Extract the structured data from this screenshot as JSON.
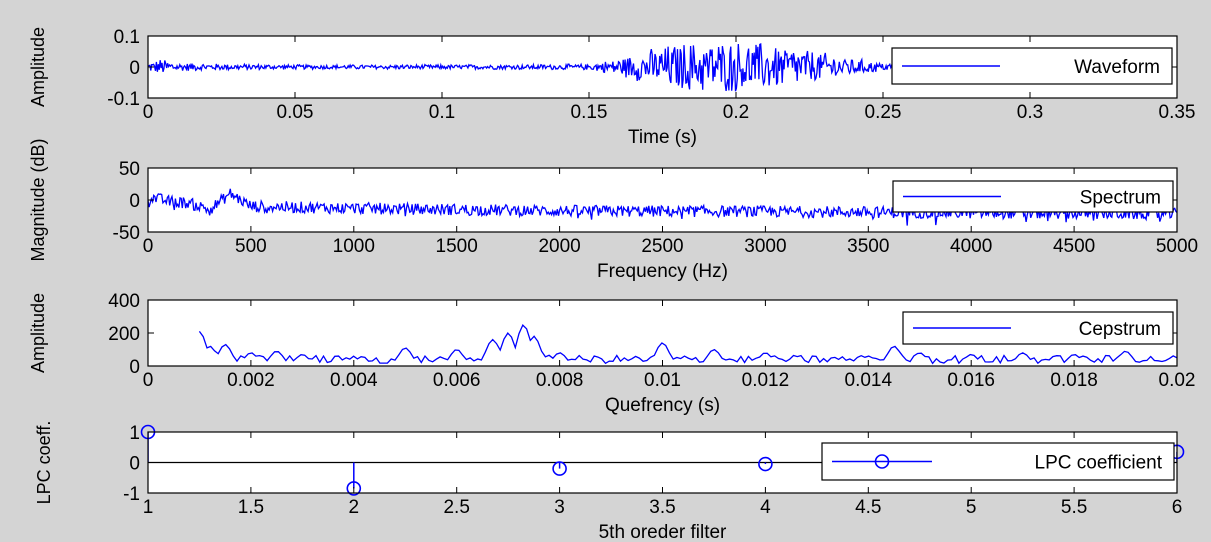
{
  "colors": {
    "background": "#d4d4d4",
    "axes_bg": "#ffffff",
    "series": "#0000ff",
    "axis": "#000000"
  },
  "chart_data": [
    {
      "type": "line",
      "xlabel": "Time (s)",
      "ylabel": "Amplitude",
      "xlim": [
        0,
        0.35
      ],
      "ylim": [
        -0.1,
        0.1
      ],
      "xticks": [
        "0",
        "0.05",
        "0.1",
        "0.15",
        "0.2",
        "0.25",
        "0.3",
        "0.35"
      ],
      "yticks": [
        "-0.1",
        "0",
        "0.1"
      ],
      "legend": {
        "position": "right",
        "entries": [
          "Waveform"
        ]
      },
      "series": [
        {
          "name": "Waveform",
          "description_values": {
            "x": [
              0,
              0.005,
              0.01,
              0.02,
              0.05,
              0.1,
              0.15,
              0.16,
              0.17,
              0.18,
              0.19,
              0.2,
              0.21,
              0.22,
              0.23,
              0.24,
              0.25,
              0.26
            ],
            "envelope": [
              0.015,
              0.03,
              0.015,
              0.012,
              0.008,
              0.008,
              0.01,
              0.03,
              0.06,
              0.085,
              0.09,
              0.09,
              0.085,
              0.07,
              0.05,
              0.03,
              0.015,
              0.01
            ]
          }
        }
      ]
    },
    {
      "type": "line",
      "xlabel": "Frequency (Hz)",
      "ylabel": "Magnitude (dB)",
      "xlim": [
        0,
        5000
      ],
      "ylim": [
        -50,
        50
      ],
      "xticks": [
        "0",
        "500",
        "1000",
        "1500",
        "2000",
        "2500",
        "3000",
        "3500",
        "4000",
        "4500",
        "5000"
      ],
      "yticks": [
        "-50",
        "0",
        "50"
      ],
      "legend": {
        "position": "right",
        "entries": [
          "Spectrum"
        ]
      },
      "series": [
        {
          "name": "Spectrum",
          "description_values": {
            "x": [
              0,
              100,
              200,
              300,
              400,
              500,
              1000,
              2000,
              3000,
              4000,
              5000
            ],
            "mean": [
              5,
              -2,
              -5,
              -15,
              10,
              -10,
              -13,
              -17,
              -18,
              -20,
              -22
            ]
          }
        }
      ]
    },
    {
      "type": "line",
      "xlabel": "Quefrency (s)",
      "ylabel": "Amplitude",
      "xlim": [
        0,
        0.02
      ],
      "ylim": [
        0,
        400
      ],
      "xticks": [
        "0",
        "0.002",
        "0.004",
        "0.006",
        "0.008",
        "0.01",
        "0.012",
        "0.014",
        "0.016",
        "0.018",
        "0.02"
      ],
      "yticks": [
        "0",
        "200",
        "400"
      ],
      "legend": {
        "position": "right",
        "entries": [
          "Cepstrum"
        ]
      },
      "series": [
        {
          "name": "Cepstrum",
          "peaks": {
            "x": [
              0.001,
              0.0012,
              0.0015,
              0.002,
              0.0025,
              0.003,
              0.004,
              0.005,
              0.006,
              0.0067,
              0.007,
              0.0073,
              0.0075,
              0.008,
              0.01,
              0.011,
              0.012,
              0.014,
              0.0145,
              0.015,
              0.016,
              0.017,
              0.018,
              0.019,
              0.02
            ],
            "y": [
              210,
              120,
              130,
              80,
              90,
              70,
              50,
              110,
              100,
              160,
              200,
              250,
              180,
              80,
              140,
              100,
              80,
              60,
              120,
              80,
              70,
              80,
              70,
              90,
              50
            ]
          }
        }
      ]
    },
    {
      "type": "scatter",
      "xlabel": "5th oreder filter",
      "ylabel": "LPC coeff.",
      "xlim": [
        1,
        6
      ],
      "ylim": [
        -1,
        1
      ],
      "xticks": [
        "1",
        "1.5",
        "2",
        "2.5",
        "3",
        "3.5",
        "4",
        "4.5",
        "5",
        "5.5",
        "6"
      ],
      "yticks": [
        "-1",
        "0",
        "1"
      ],
      "legend": {
        "position": "right",
        "entries": [
          "LPC coefficient"
        ]
      },
      "series": [
        {
          "name": "LPC coefficient",
          "x": [
            1,
            2,
            3,
            4,
            6
          ],
          "y": [
            1,
            -0.85,
            -0.2,
            -0.05,
            0.35
          ]
        }
      ]
    }
  ]
}
